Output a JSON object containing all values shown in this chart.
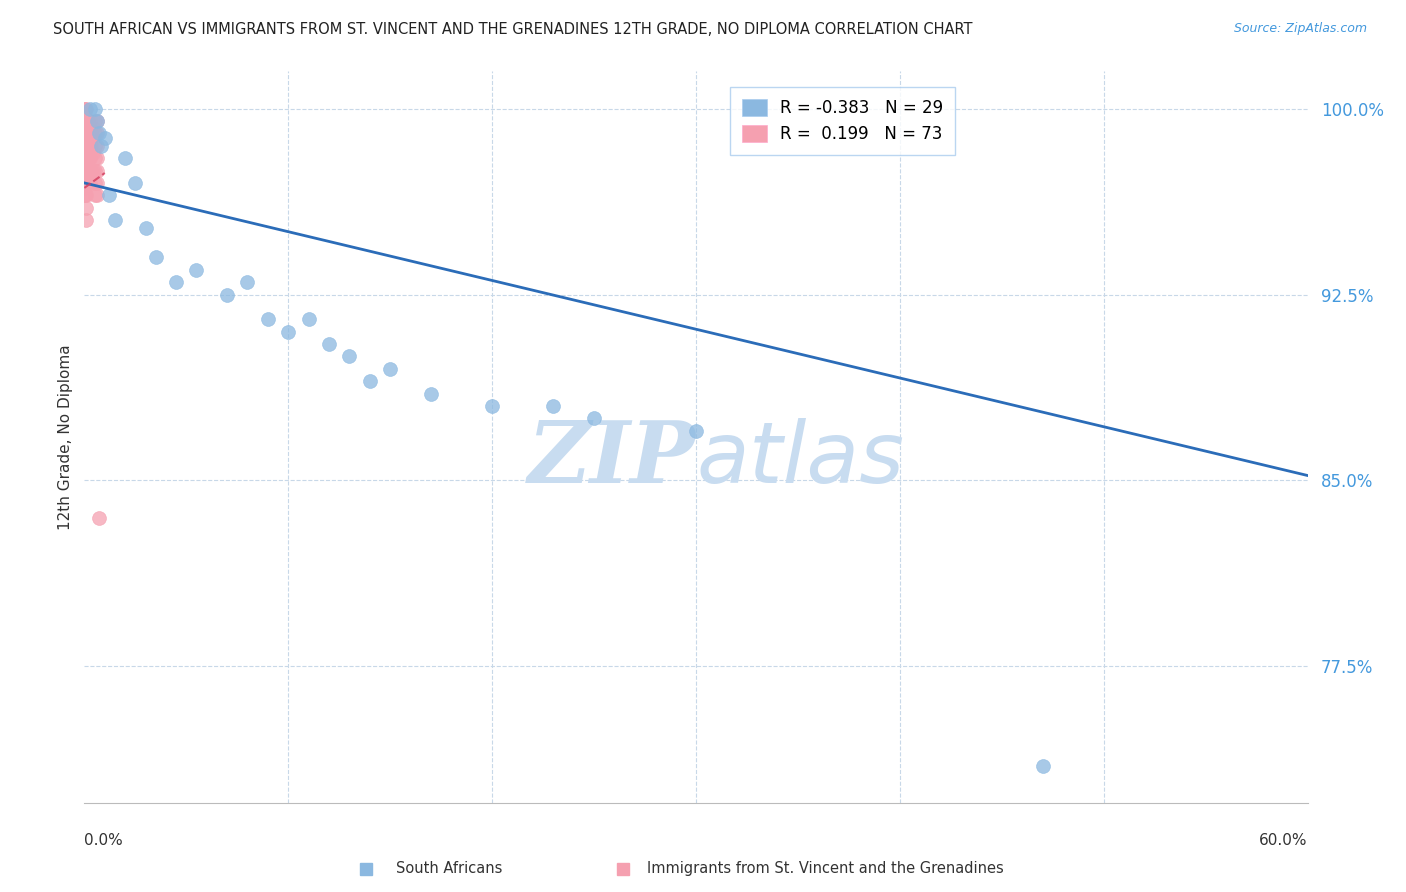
{
  "title": "SOUTH AFRICAN VS IMMIGRANTS FROM ST. VINCENT AND THE GRENADINES 12TH GRADE, NO DIPLOMA CORRELATION CHART",
  "source": "Source: ZipAtlas.com",
  "ylabel": "12th Grade, No Diploma",
  "yticks": [
    100.0,
    92.5,
    85.0,
    77.5
  ],
  "ytick_labels": [
    "100.0%",
    "92.5%",
    "85.0%",
    "77.5%"
  ],
  "xmin": 0.0,
  "xmax": 60.0,
  "ymin": 72.0,
  "ymax": 101.5,
  "blue_R": -0.383,
  "blue_N": 29,
  "pink_R": 0.199,
  "pink_N": 73,
  "blue_color": "#8BB8E0",
  "pink_color": "#F5A0B0",
  "regression_blue_color": "#2B6CB8",
  "regression_pink_color": "#D44060",
  "watermark_zip": "ZIP",
  "watermark_atlas": "atlas",
  "watermark_color": "#C8DCF0",
  "legend_label_blue": "South Africans",
  "legend_label_pink": "Immigrants from St. Vincent and the Grenadines",
  "blue_line_x0": 0.0,
  "blue_line_y0": 97.0,
  "blue_line_x1": 60.0,
  "blue_line_y1": 85.2,
  "pink_line_x0": 0.0,
  "pink_line_y0": 96.8,
  "pink_line_x1": 1.0,
  "pink_line_y1": 97.4,
  "blue_points_x": [
    0.3,
    0.5,
    0.6,
    0.7,
    0.8,
    1.0,
    1.2,
    1.5,
    2.0,
    2.5,
    3.0,
    3.5,
    4.5,
    5.5,
    7.0,
    8.0,
    9.0,
    10.0,
    11.0,
    12.0,
    13.0,
    14.0,
    15.0,
    17.0,
    20.0,
    23.0,
    25.0,
    30.0,
    47.0
  ],
  "blue_points_y": [
    100.0,
    100.0,
    99.5,
    99.0,
    98.5,
    98.8,
    96.5,
    95.5,
    98.0,
    97.0,
    95.2,
    94.0,
    93.0,
    93.5,
    92.5,
    93.0,
    91.5,
    91.0,
    91.5,
    90.5,
    90.0,
    89.0,
    89.5,
    88.5,
    88.0,
    88.0,
    87.5,
    87.0,
    73.5
  ],
  "pink_points_x": [
    0.0,
    0.0,
    0.0,
    0.0,
    0.0,
    0.0,
    0.0,
    0.0,
    0.0,
    0.0,
    0.0,
    0.0,
    0.0,
    0.0,
    0.05,
    0.05,
    0.05,
    0.05,
    0.05,
    0.05,
    0.05,
    0.05,
    0.1,
    0.1,
    0.1,
    0.1,
    0.1,
    0.1,
    0.1,
    0.1,
    0.1,
    0.15,
    0.15,
    0.15,
    0.15,
    0.2,
    0.2,
    0.2,
    0.2,
    0.2,
    0.2,
    0.25,
    0.25,
    0.25,
    0.25,
    0.3,
    0.3,
    0.3,
    0.3,
    0.3,
    0.3,
    0.35,
    0.35,
    0.35,
    0.4,
    0.4,
    0.4,
    0.4,
    0.5,
    0.5,
    0.5,
    0.5,
    0.5,
    0.5,
    0.5,
    0.6,
    0.6,
    0.6,
    0.6,
    0.6,
    0.6,
    0.6,
    0.7
  ],
  "pink_points_y": [
    100.0,
    99.8,
    99.5,
    99.2,
    99.0,
    98.8,
    98.5,
    98.2,
    97.8,
    97.5,
    97.2,
    97.0,
    96.8,
    96.5,
    100.0,
    99.5,
    99.0,
    98.5,
    98.0,
    97.5,
    97.0,
    96.5,
    100.0,
    99.5,
    98.5,
    98.0,
    97.5,
    97.0,
    96.5,
    96.0,
    95.5,
    99.0,
    98.5,
    97.5,
    97.0,
    99.5,
    99.0,
    98.5,
    98.0,
    97.5,
    97.0,
    99.0,
    98.5,
    98.0,
    97.0,
    99.5,
    99.0,
    98.5,
    98.0,
    97.5,
    97.0,
    99.0,
    98.5,
    97.5,
    99.2,
    98.8,
    98.2,
    97.5,
    99.5,
    99.0,
    98.5,
    98.0,
    97.5,
    97.0,
    96.5,
    99.5,
    99.0,
    98.5,
    98.0,
    97.5,
    97.0,
    96.5,
    83.5
  ]
}
